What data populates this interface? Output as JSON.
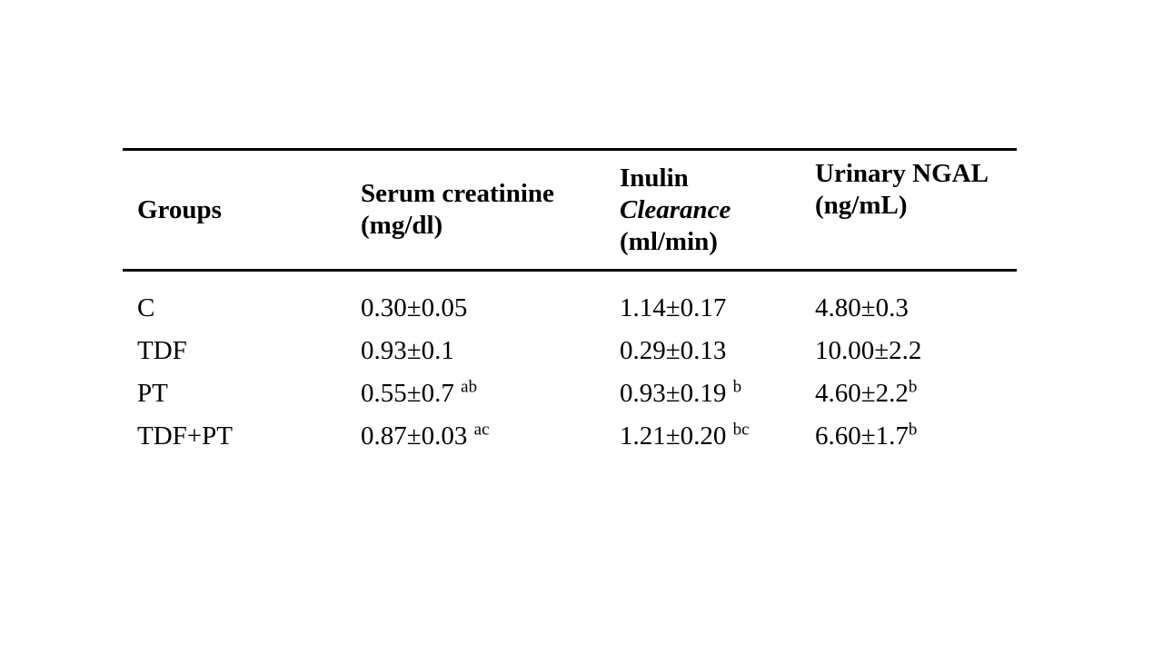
{
  "page": {
    "background": "#ffffff",
    "text_color": "#000000",
    "rule_color": "#000000"
  },
  "table": {
    "headers": [
      {
        "lines": [
          "Groups"
        ]
      },
      {
        "lines": [
          "Serum creatinine",
          "(mg/dl)"
        ]
      },
      {
        "lines": [
          "Inulin",
          "Clearance",
          "(ml/min)"
        ]
      },
      {
        "lines": [
          "Urinary NGAL",
          "(ng/mL)"
        ]
      }
    ],
    "rows": [
      {
        "group": "C",
        "serum_creatinine": {
          "text": "0.30±0.05",
          "sup": ""
        },
        "inulin_clearance": {
          "text": "1.14±0.17",
          "sup": ""
        },
        "urinary_ngal": {
          "text": "4.80±0.3",
          "sup": ""
        }
      },
      {
        "group": "TDF",
        "serum_creatinine": {
          "text": "0.93±0.1",
          "sup": ""
        },
        "inulin_clearance": {
          "text": "0.29±0.13",
          "sup": ""
        },
        "urinary_ngal": {
          "text": "10.00±2.2",
          "sup": ""
        }
      },
      {
        "group": "PT",
        "serum_creatinine": {
          "text": "0.55±0.7 ",
          "sup": "ab"
        },
        "inulin_clearance": {
          "text": "0.93±0.19 ",
          "sup": "b"
        },
        "urinary_ngal": {
          "text": "4.60±2.2",
          "sup": "b"
        }
      },
      {
        "group": "TDF+PT",
        "serum_creatinine": {
          "text": "0.87±0.03 ",
          "sup": "ac"
        },
        "inulin_clearance": {
          "text": "1.21±0.20 ",
          "sup": "bc"
        },
        "urinary_ngal": {
          "text": "6.60±1.7",
          "sup": "b"
        }
      }
    ]
  }
}
